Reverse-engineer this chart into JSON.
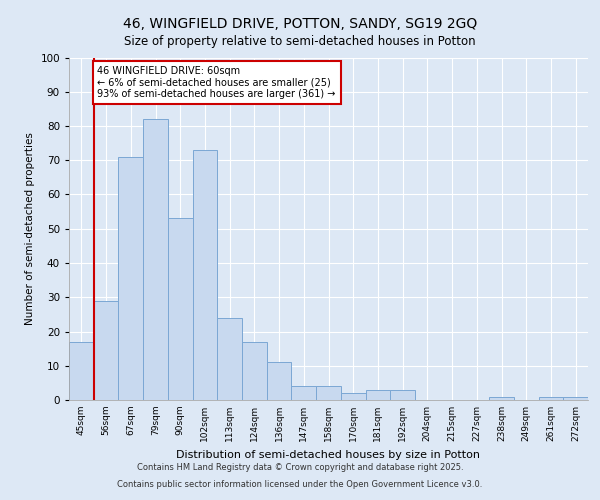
{
  "title1": "46, WINGFIELD DRIVE, POTTON, SANDY, SG19 2GQ",
  "title2": "Size of property relative to semi-detached houses in Potton",
  "xlabel": "Distribution of semi-detached houses by size in Potton",
  "ylabel": "Number of semi-detached properties",
  "bar_labels": [
    "45sqm",
    "56sqm",
    "67sqm",
    "79sqm",
    "90sqm",
    "102sqm",
    "113sqm",
    "124sqm",
    "136sqm",
    "147sqm",
    "158sqm",
    "170sqm",
    "181sqm",
    "192sqm",
    "204sqm",
    "215sqm",
    "227sqm",
    "238sqm",
    "249sqm",
    "261sqm",
    "272sqm"
  ],
  "bar_values": [
    17,
    29,
    71,
    82,
    53,
    73,
    24,
    17,
    11,
    4,
    4,
    2,
    3,
    3,
    0,
    0,
    0,
    1,
    0,
    1,
    1
  ],
  "bar_color": "#c8d9ef",
  "bar_edge_color": "#7ba7d4",
  "subject_line_color": "#cc0000",
  "annotation_title": "46 WINGFIELD DRIVE: 60sqm",
  "annotation_line1": "← 6% of semi-detached houses are smaller (25)",
  "annotation_line2": "93% of semi-detached houses are larger (361) →",
  "annotation_box_color": "#cc0000",
  "ylim": [
    0,
    100
  ],
  "yticks": [
    0,
    10,
    20,
    30,
    40,
    50,
    60,
    70,
    80,
    90,
    100
  ],
  "fig_background": "#dde8f5",
  "axes_background": "#dde8f5",
  "grid_color": "#ffffff",
  "footer1": "Contains HM Land Registry data © Crown copyright and database right 2025.",
  "footer2": "Contains public sector information licensed under the Open Government Licence v3.0."
}
